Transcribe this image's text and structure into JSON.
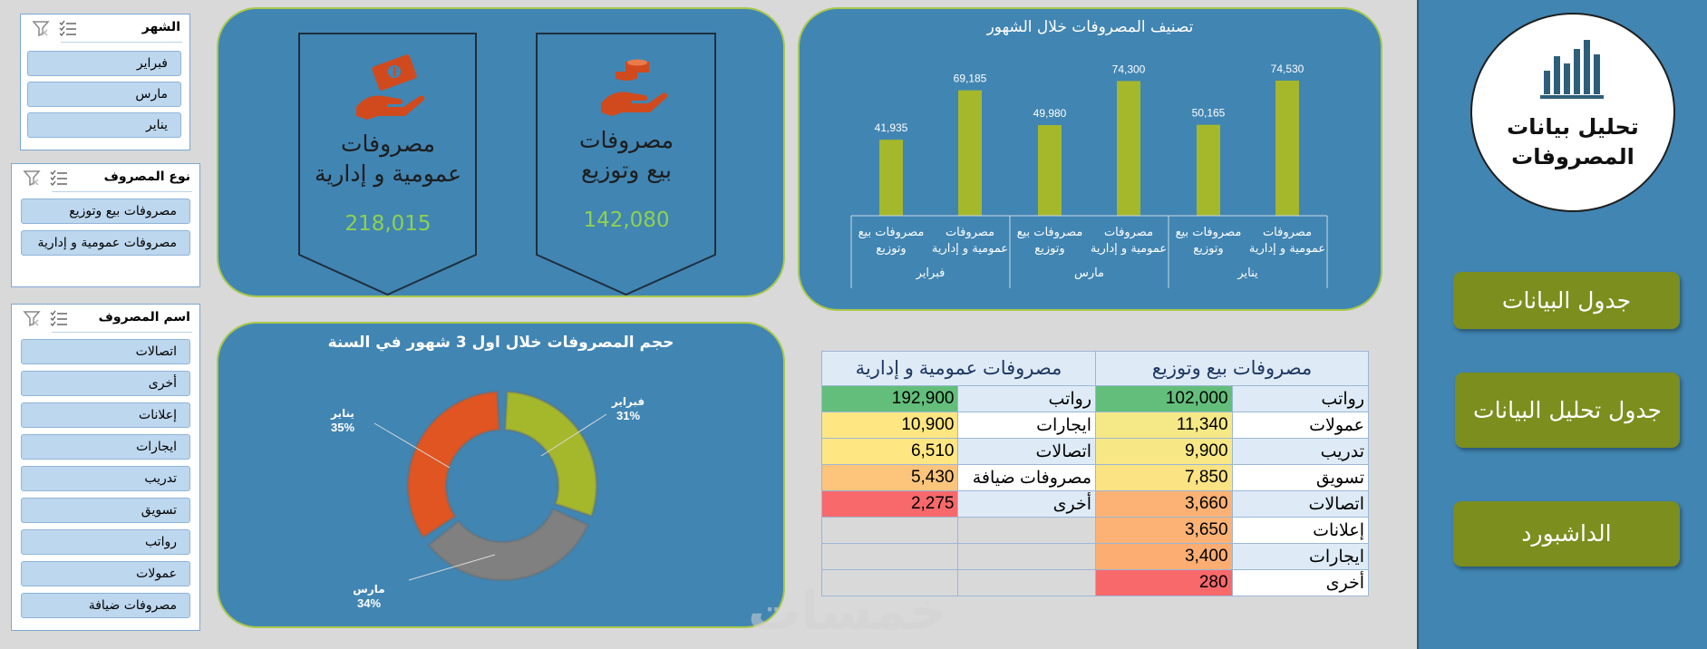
{
  "slicers": {
    "month": {
      "title": "الشهر",
      "items": [
        "فبراير",
        "مارس",
        "يناير"
      ]
    },
    "type": {
      "title": "نوع المصروف",
      "items": [
        "مصروفات بيع وتوزيع",
        "مصروفات عمومية و إدارية"
      ]
    },
    "name": {
      "title": "اسم المصروف",
      "items": [
        "اتصالات",
        "أخرى",
        "إعلانات",
        "ايجارات",
        "تدريب",
        "تسويق",
        "رواتب",
        "عمولات",
        "مصروفات ضيافة"
      ]
    }
  },
  "kpis": [
    {
      "title_line1": "مصروفات",
      "title_line2": "عمومية و إدارية",
      "value": "218,015",
      "icon": "money-hand-icon"
    },
    {
      "title_line1": "مصروفات",
      "title_line2": "بيع وتوزيع",
      "value": "142,080",
      "icon": "coins-hand-icon"
    }
  ],
  "bar_chart": {
    "chart_data": {
      "type": "bar",
      "title": "تصنيف المصروفات خلال الشهور",
      "groups": [
        "فبراير",
        "مارس",
        "يناير"
      ],
      "categories": [
        "مصروفات بيع وتوزيع",
        "مصروفات عمومية و إدارية"
      ],
      "category_label_lines": [
        [
          "مصروفات بيع",
          "وتوزيع"
        ],
        [
          "مصروفات",
          "عمومية و إدارية"
        ]
      ],
      "values": [
        [
          41935,
          69185
        ],
        [
          49980,
          74300
        ],
        [
          50165,
          74530
        ]
      ],
      "value_labels": [
        [
          "41,935",
          "69,185"
        ],
        [
          "49,980",
          "74,300"
        ],
        [
          "50,165",
          "74,530"
        ]
      ],
      "ylim": [
        0,
        80000
      ],
      "bar_color": "#a5b82b"
    }
  },
  "donut_chart": {
    "chart_data": {
      "type": "pie",
      "title": "حجم المصروفات خلال اول 3 شهور في السنة",
      "labels": [
        "فبراير",
        "مارس",
        "يناير"
      ],
      "values": [
        31,
        34,
        35
      ],
      "percent_labels": [
        "31%",
        "34%",
        "35%"
      ],
      "colors": [
        "#a5b82b",
        "#808080",
        "#e05522"
      ]
    }
  },
  "table": {
    "headers": [
      "مصروفات بيع وتوزيع",
      "مصروفات عمومية و إدارية"
    ],
    "sales": [
      {
        "label": "رواتب",
        "value": "102,000",
        "color": "#63be7b"
      },
      {
        "label": "عمولات",
        "value": "11,340",
        "color": "#f5e886"
      },
      {
        "label": "تدريب",
        "value": "9,900",
        "color": "#f7e785"
      },
      {
        "label": "تسويق",
        "value": "7,850",
        "color": "#fbe283"
      },
      {
        "label": "اتصالات",
        "value": "3,660",
        "color": "#fbb274"
      },
      {
        "label": "إعلانات",
        "value": "3,650",
        "color": "#fbb274"
      },
      {
        "label": "ايجارات",
        "value": "3,400",
        "color": "#fbad72"
      },
      {
        "label": "أخرى",
        "value": "280",
        "color": "#f8696b"
      }
    ],
    "admin": [
      {
        "label": "رواتب",
        "value": "192,900",
        "color": "#63be7b"
      },
      {
        "label": "ايجارات",
        "value": "10,900",
        "color": "#fee683"
      },
      {
        "label": "اتصالات",
        "value": "6,510",
        "color": "#fee683"
      },
      {
        "label": "مصروفات ضيافة",
        "value": "5,430",
        "color": "#fdc47c"
      },
      {
        "label": "أخرى",
        "value": "2,275",
        "color": "#f8696b"
      }
    ]
  },
  "sidebar": {
    "logo_title_line1": "تحليل بيانات",
    "logo_title_line2": "المصروفات",
    "buttons": [
      "جدول البيانات",
      "جدول تحليل البيانات",
      "الداشبورد"
    ]
  },
  "watermark": "خمسات"
}
